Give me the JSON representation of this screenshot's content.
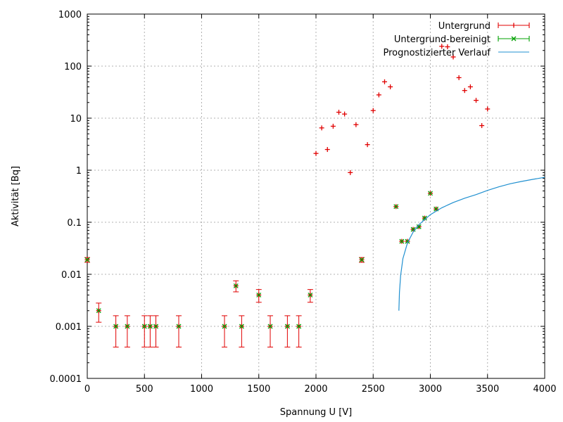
{
  "chart_data": {
    "type": "scatter",
    "xlabel": "Spannung U [V]",
    "ylabel": "Aktivität [Bq]",
    "xlim": [
      0,
      4000
    ],
    "ylim": [
      0.0001,
      1000
    ],
    "yscale": "log",
    "grid": true,
    "legend_position": "top-right",
    "x_ticks": [
      "0",
      "500",
      "1000",
      "1500",
      "2000",
      "2500",
      "3000",
      "3500",
      "4000"
    ],
    "y_ticks": [
      "0.0001",
      "0.001",
      "0.01",
      "0.1",
      "1",
      "10",
      "100",
      "1000"
    ],
    "colors": {
      "untergrund": "#e00000",
      "bereinigt": "#00a000",
      "prognose": "#2090d0"
    },
    "series": [
      {
        "name": "Untergrund",
        "marker": "plus",
        "points": [
          {
            "x": 0,
            "y": 0.019,
            "ylo": 0.017,
            "yhi": 0.021
          },
          {
            "x": 100,
            "y": 0.002,
            "ylo": 0.0012,
            "yhi": 0.0028
          },
          {
            "x": 250,
            "y": 0.001,
            "ylo": 0.0004,
            "yhi": 0.0016
          },
          {
            "x": 350,
            "y": 0.001,
            "ylo": 0.0004,
            "yhi": 0.0016
          },
          {
            "x": 500,
            "y": 0.001,
            "ylo": 0.0004,
            "yhi": 0.0016
          },
          {
            "x": 550,
            "y": 0.001,
            "ylo": 0.0004,
            "yhi": 0.0016
          },
          {
            "x": 600,
            "y": 0.001,
            "ylo": 0.0004,
            "yhi": 0.0016
          },
          {
            "x": 800,
            "y": 0.001,
            "ylo": 0.0004,
            "yhi": 0.0016
          },
          {
            "x": 1200,
            "y": 0.001,
            "ylo": 0.0004,
            "yhi": 0.0016
          },
          {
            "x": 1300,
            "y": 0.006,
            "ylo": 0.0046,
            "yhi": 0.0075
          },
          {
            "x": 1350,
            "y": 0.001,
            "ylo": 0.0004,
            "yhi": 0.0016
          },
          {
            "x": 1500,
            "y": 0.004,
            "ylo": 0.0029,
            "yhi": 0.0051
          },
          {
            "x": 1600,
            "y": 0.001,
            "ylo": 0.0004,
            "yhi": 0.0016
          },
          {
            "x": 1750,
            "y": 0.001,
            "ylo": 0.0004,
            "yhi": 0.0016
          },
          {
            "x": 1850,
            "y": 0.001,
            "ylo": 0.0004,
            "yhi": 0.0016
          },
          {
            "x": 1950,
            "y": 0.004,
            "ylo": 0.0029,
            "yhi": 0.0051
          },
          {
            "x": 2000,
            "y": 2.1
          },
          {
            "x": 2050,
            "y": 6.5
          },
          {
            "x": 2100,
            "y": 2.5
          },
          {
            "x": 2150,
            "y": 7
          },
          {
            "x": 2200,
            "y": 13
          },
          {
            "x": 2250,
            "y": 12
          },
          {
            "x": 2300,
            "y": 0.9
          },
          {
            "x": 2350,
            "y": 7.5
          },
          {
            "x": 2400,
            "y": 0.019,
            "ylo": 0.017,
            "yhi": 0.021
          },
          {
            "x": 2450,
            "y": 3.1
          },
          {
            "x": 2500,
            "y": 14
          },
          {
            "x": 2550,
            "y": 28
          },
          {
            "x": 2600,
            "y": 50
          },
          {
            "x": 2650,
            "y": 40
          },
          {
            "x": 2700,
            "y": 0.2
          },
          {
            "x": 2750,
            "y": 0.043
          },
          {
            "x": 2800,
            "y": 0.043
          },
          {
            "x": 2850,
            "y": 0.073
          },
          {
            "x": 2900,
            "y": 0.082
          },
          {
            "x": 2950,
            "y": 0.12
          },
          {
            "x": 3000,
            "y": 0.36
          },
          {
            "x": 3050,
            "y": 0.18
          },
          {
            "x": 3100,
            "y": 240
          },
          {
            "x": 3150,
            "y": 235
          },
          {
            "x": 3200,
            "y": 150
          },
          {
            "x": 3250,
            "y": 60
          },
          {
            "x": 3300,
            "y": 34
          },
          {
            "x": 3350,
            "y": 40
          },
          {
            "x": 3400,
            "y": 22
          },
          {
            "x": 3450,
            "y": 7.2
          },
          {
            "x": 3500,
            "y": 15
          }
        ]
      },
      {
        "name": "Untergrund-bereinigt",
        "marker": "cross",
        "points": [
          {
            "x": 0,
            "y": 0.019
          },
          {
            "x": 100,
            "y": 0.002
          },
          {
            "x": 250,
            "y": 0.001
          },
          {
            "x": 350,
            "y": 0.001
          },
          {
            "x": 500,
            "y": 0.001
          },
          {
            "x": 550,
            "y": 0.001
          },
          {
            "x": 600,
            "y": 0.001
          },
          {
            "x": 800,
            "y": 0.001
          },
          {
            "x": 1200,
            "y": 0.001
          },
          {
            "x": 1300,
            "y": 0.006
          },
          {
            "x": 1350,
            "y": 0.001
          },
          {
            "x": 1500,
            "y": 0.004
          },
          {
            "x": 1600,
            "y": 0.001
          },
          {
            "x": 1750,
            "y": 0.001
          },
          {
            "x": 1850,
            "y": 0.001
          },
          {
            "x": 1950,
            "y": 0.004
          },
          {
            "x": 2400,
            "y": 0.019
          },
          {
            "x": 2700,
            "y": 0.2
          },
          {
            "x": 2750,
            "y": 0.043
          },
          {
            "x": 2800,
            "y": 0.043
          },
          {
            "x": 2850,
            "y": 0.073
          },
          {
            "x": 2900,
            "y": 0.082
          },
          {
            "x": 2950,
            "y": 0.12
          },
          {
            "x": 3000,
            "y": 0.36
          },
          {
            "x": 3050,
            "y": 0.18
          }
        ]
      },
      {
        "name": "Prognostizierter Verlauf",
        "marker": "line",
        "points": [
          {
            "x": 2725,
            "y": 0.002
          },
          {
            "x": 2730,
            "y": 0.0045
          },
          {
            "x": 2740,
            "y": 0.0095
          },
          {
            "x": 2760,
            "y": 0.02
          },
          {
            "x": 2800,
            "y": 0.04
          },
          {
            "x": 2850,
            "y": 0.065
          },
          {
            "x": 2900,
            "y": 0.09
          },
          {
            "x": 3000,
            "y": 0.14
          },
          {
            "x": 3100,
            "y": 0.19
          },
          {
            "x": 3200,
            "y": 0.24
          },
          {
            "x": 3300,
            "y": 0.29
          },
          {
            "x": 3400,
            "y": 0.34
          },
          {
            "x": 3500,
            "y": 0.41
          },
          {
            "x": 3600,
            "y": 0.48
          },
          {
            "x": 3700,
            "y": 0.55
          },
          {
            "x": 3800,
            "y": 0.61
          },
          {
            "x": 3900,
            "y": 0.67
          },
          {
            "x": 4000,
            "y": 0.73
          }
        ]
      }
    ]
  }
}
